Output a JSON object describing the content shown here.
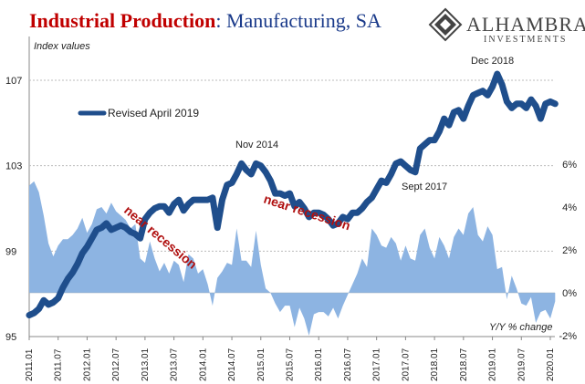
{
  "title": {
    "part1": "Industrial Production",
    "part2": ": Manufacturing, SA"
  },
  "logo": {
    "name": "ALHAMBRA",
    "sub": "INVESTMENTS"
  },
  "left_axis_label": "Index values",
  "right_axis_label": "Y/Y % change",
  "legend_label": "Revised April 2019",
  "annotations": {
    "nov2014": "Nov 2014",
    "dec2018": "Dec 2018",
    "sept2017": "Sept 2017",
    "recession1": "near recession",
    "recession2": "near recession"
  },
  "colors": {
    "index_line": "#1f4e8c",
    "yoy_area": "#8db4e2",
    "title_red": "#c00000",
    "title_blue": "#1a3a8a"
  },
  "chart_data": {
    "type": "line",
    "x_tick_labels": [
      "2011.01",
      "2011.07",
      "2012.01",
      "2012.07",
      "2013.01",
      "2013.07",
      "2014.01",
      "2014.07",
      "2015.01",
      "2015.07",
      "2016.01",
      "2016.07",
      "2017.01",
      "2017.07",
      "2018.01",
      "2018.07",
      "2019.01",
      "2019.07",
      "2020.01"
    ],
    "left_axis": {
      "label": "Index values",
      "ticks": [
        95,
        99,
        103,
        107
      ],
      "range": [
        95,
        107
      ]
    },
    "right_axis": {
      "label": "Y/Y % change",
      "ticks": [
        "-2%",
        "0%",
        "2%",
        "4%",
        "6%"
      ],
      "range_pct": [
        -2,
        6
      ]
    },
    "grid": "horizontal dashed",
    "series": [
      {
        "name": "Revised April 2019",
        "axis": "left",
        "style": "thick line",
        "start": "2011.01",
        "frequency": "monthly",
        "values": [
          96.0,
          96.1,
          96.3,
          96.7,
          96.5,
          96.6,
          96.8,
          97.3,
          97.7,
          98.0,
          98.4,
          98.9,
          99.2,
          99.6,
          100.0,
          100.1,
          100.3,
          100.0,
          100.1,
          100.2,
          100.1,
          99.9,
          99.8,
          99.6,
          100.5,
          100.8,
          101.0,
          101.1,
          101.1,
          100.8,
          101.2,
          101.4,
          100.9,
          101.2,
          101.4,
          101.4,
          101.4,
          101.4,
          101.5,
          100.1,
          101.4,
          102.1,
          102.2,
          102.6,
          103.1,
          102.8,
          102.6,
          103.1,
          103.0,
          102.7,
          102.3,
          101.7,
          101.7,
          101.6,
          101.7,
          101.1,
          101.3,
          101.0,
          100.6,
          100.8,
          100.8,
          100.7,
          100.5,
          100.2,
          100.3,
          100.6,
          100.5,
          100.8,
          100.8,
          101.0,
          101.3,
          101.5,
          101.9,
          102.3,
          102.2,
          102.6,
          103.1,
          103.2,
          103.0,
          102.8,
          102.7,
          103.8,
          104.0,
          104.2,
          104.2,
          104.6,
          105.2,
          104.9,
          105.5,
          105.6,
          105.2,
          105.8,
          106.3,
          106.4,
          106.5,
          106.3,
          106.7,
          107.3,
          106.8,
          106.0,
          105.7,
          105.9,
          105.9,
          105.7,
          106.1,
          105.8,
          105.2,
          105.9,
          106.0,
          105.9
        ]
      },
      {
        "name": "Y/Y % change",
        "axis": "right",
        "style": "area",
        "start": "2011.01",
        "frequency": "monthly",
        "values": [
          5.0,
          5.2,
          4.7,
          3.6,
          2.3,
          1.7,
          2.2,
          2.5,
          2.5,
          2.7,
          3.0,
          3.5,
          2.8,
          3.2,
          3.9,
          4.0,
          3.7,
          4.2,
          3.8,
          3.6,
          3.4,
          3.0,
          3.2,
          1.6,
          1.4,
          2.4,
          1.6,
          1.0,
          1.4,
          0.9,
          1.5,
          1.3,
          0.5,
          1.8,
          1.6,
          0.9,
          1.1,
          0.4,
          -0.6,
          0.7,
          1.0,
          1.4,
          1.3,
          3.0,
          1.5,
          1.5,
          1.2,
          2.9,
          1.3,
          0.2,
          0.0,
          -0.5,
          -0.9,
          -0.6,
          -0.6,
          -1.6,
          -0.7,
          -1.2,
          -2.0,
          -1.0,
          -0.9,
          -0.9,
          -1.1,
          -0.7,
          -1.2,
          -0.6,
          -0.1,
          0.4,
          0.9,
          1.6,
          1.2,
          3.0,
          2.7,
          2.2,
          2.1,
          2.6,
          2.3,
          1.5,
          2.2,
          1.6,
          1.5,
          2.7,
          3.0,
          2.1,
          1.6,
          2.6,
          2.2,
          1.6,
          2.6,
          3.0,
          2.7,
          3.7,
          4.0,
          2.7,
          2.4,
          3.1,
          2.7,
          1.1,
          1.2,
          -0.3,
          0.8,
          0.2,
          -0.5,
          -0.6,
          -0.2,
          -1.4,
          -0.9,
          -0.8,
          -1.2,
          -0.4
        ]
      }
    ]
  }
}
